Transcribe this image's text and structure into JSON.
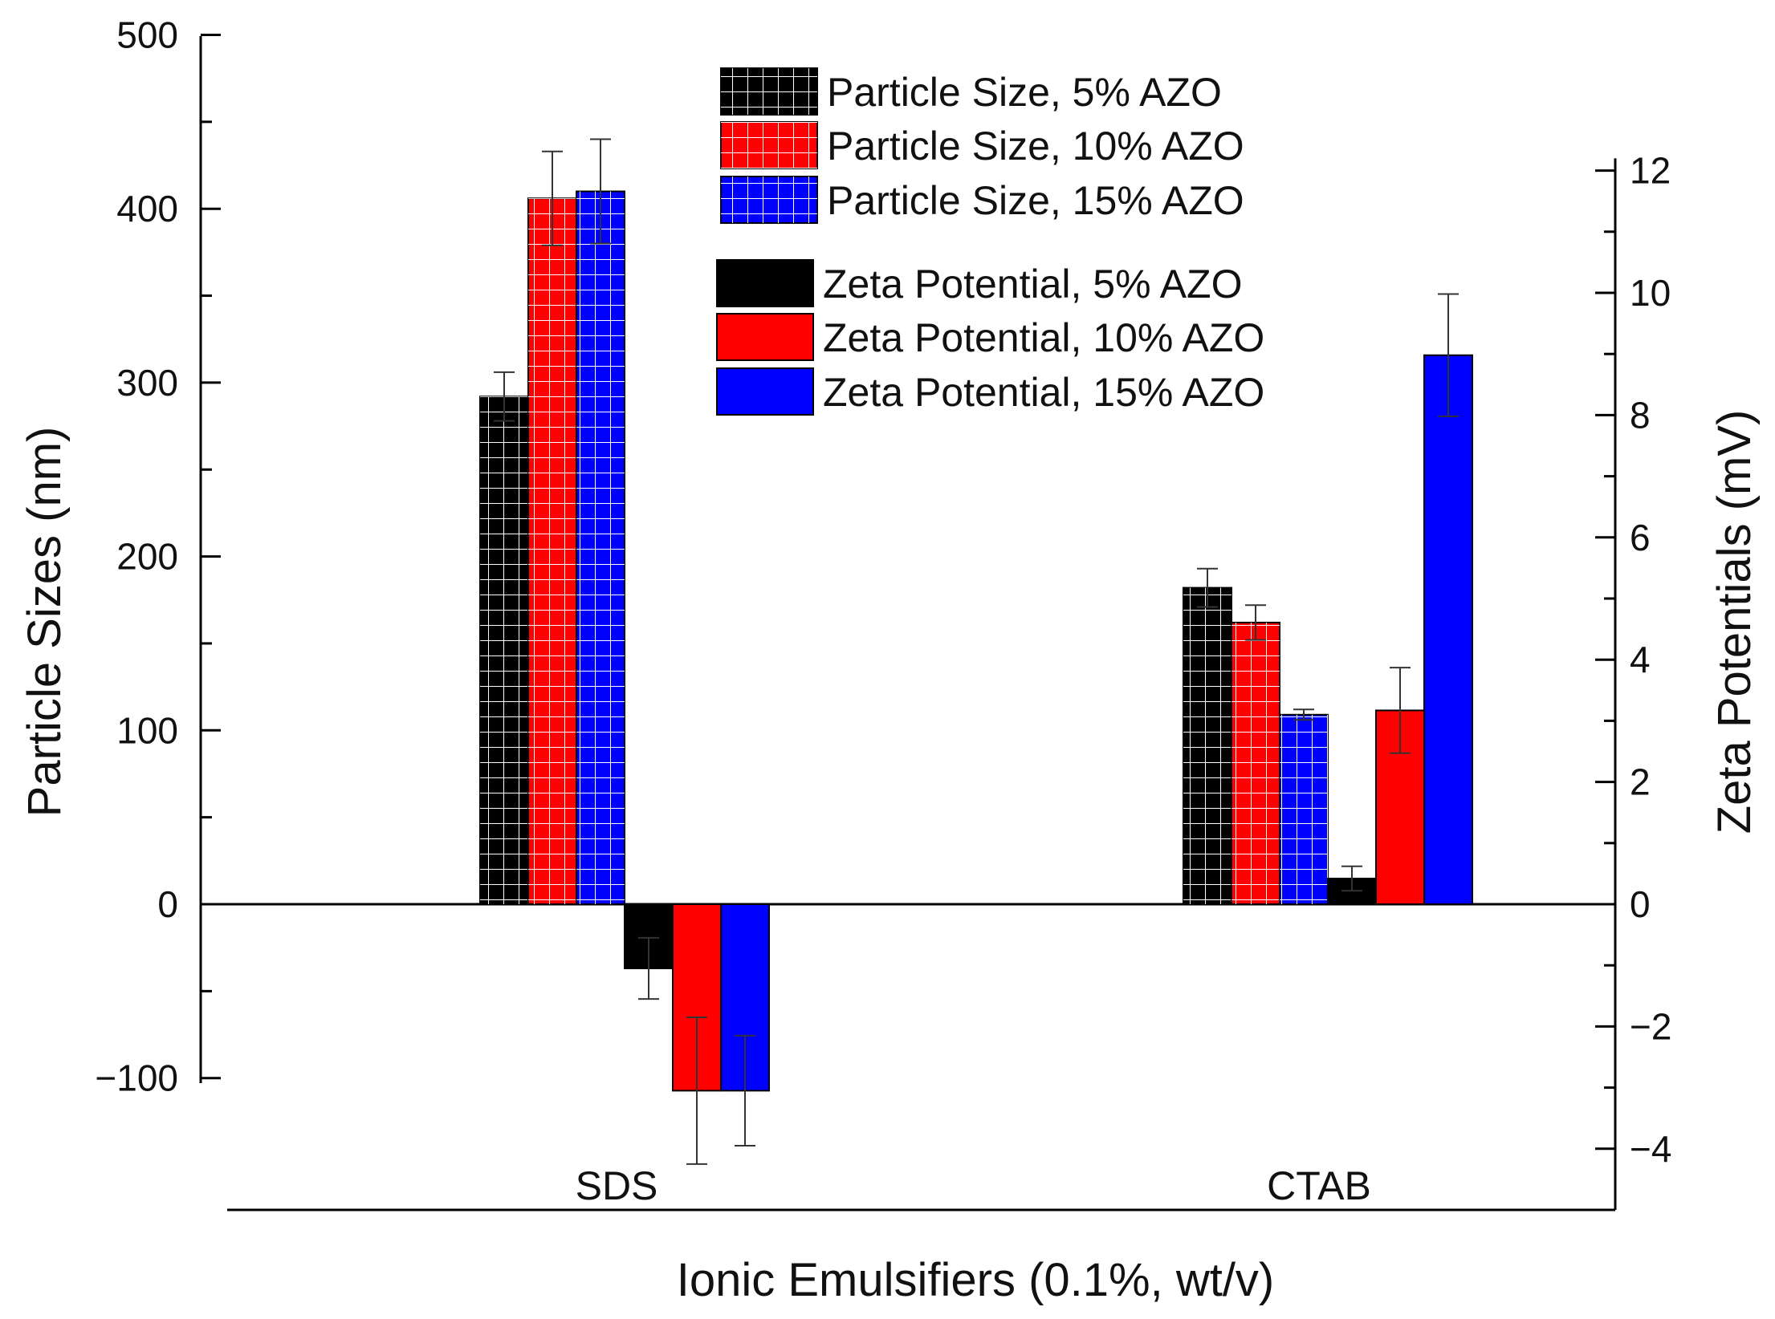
{
  "chart_data": {
    "type": "bar",
    "title": "",
    "categories": [
      "SDS",
      "CTAB"
    ],
    "xlabel": "Ionic Emulsifiers (0.1%, wt/v)",
    "ylabel_left": "Particle Sizes (nm)",
    "ylabel_right": "Zeta Potentials (mV)",
    "ylim_left": [
      -150,
      500
    ],
    "ylim_right": [
      -4.9,
      12.2
    ],
    "yticks_left": [
      -100,
      0,
      100,
      200,
      300,
      400,
      500
    ],
    "yticks_left_labels": [
      "−100",
      "0",
      "100",
      "200",
      "300",
      "400",
      "500"
    ],
    "yticks_right": [
      -4,
      -2,
      0,
      2,
      4,
      6,
      8,
      10,
      12
    ],
    "yticks_right_labels": [
      "−4",
      "−2",
      "0",
      "2",
      "4",
      "6",
      "8",
      "10",
      "12"
    ],
    "legend_position": "top-center",
    "grid": false,
    "series": [
      {
        "name": "Particle Size, 5% AZO",
        "axis": "left",
        "pattern": "grid",
        "color": "#000000",
        "values": [
          292,
          182
        ],
        "errors": [
          14,
          11
        ]
      },
      {
        "name": "Particle Size, 10% AZO",
        "axis": "left",
        "pattern": "grid",
        "color": "#ff0000",
        "values": [
          406,
          162
        ],
        "errors": [
          27,
          10
        ]
      },
      {
        "name": "Particle Size, 15% AZO",
        "axis": "left",
        "pattern": "grid",
        "color": "#0000ff",
        "values": [
          410,
          109
        ],
        "errors": [
          30,
          3
        ]
      },
      {
        "name": "Zeta Potential, 5% AZO",
        "axis": "right",
        "pattern": "solid",
        "color": "#000000",
        "values": [
          -1.05,
          0.42
        ],
        "errors": [
          0.5,
          0.2
        ]
      },
      {
        "name": "Zeta Potential, 10% AZO",
        "axis": "right",
        "pattern": "solid",
        "color": "#ff0000",
        "values": [
          -3.05,
          3.17
        ],
        "errors": [
          1.2,
          0.7
        ]
      },
      {
        "name": "Zeta Potential, 15% AZO",
        "axis": "right",
        "pattern": "solid",
        "color": "#0000ff",
        "values": [
          -3.05,
          8.98
        ],
        "errors": [
          0.9,
          1.0
        ]
      }
    ]
  }
}
